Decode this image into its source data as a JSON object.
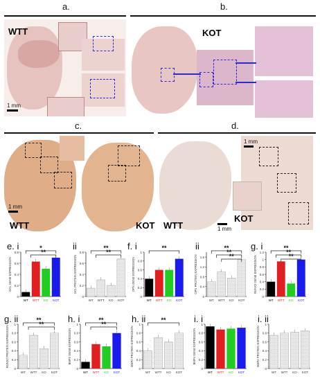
{
  "figure": {
    "panels": {
      "a": {
        "letter": "a.",
        "tissue_label": "WTT",
        "scale": "1 mm"
      },
      "b": {
        "letter": "b.",
        "tissue_label": "KOT"
      },
      "c": {
        "letter": "c.",
        "tissue_label_left": "WTT",
        "tissue_label_right": "KOT",
        "scale": "1 mm"
      },
      "d": {
        "letter": "d.",
        "tissue_label_left": "WTT",
        "tissue_label_right": "KOT",
        "scale_bottom": "1 mm",
        "scale_top": "1 mm"
      }
    },
    "chart_labels": {
      "e_i": "e. i",
      "e_ii": "ii",
      "f_i": "f. i",
      "f_ii": "ii",
      "g_i": "g. i",
      "g_ii": "g. ii",
      "h_i": "h. i",
      "h_ii": "h. ii",
      "i_i": "i. i",
      "i_ii": "i. ii"
    },
    "colors": {
      "WT": "#000000",
      "WTT": "#e02020",
      "KO": "#22cc22",
      "KOT": "#1a1aee",
      "hatch": "#c8c8c8",
      "tissue": "#e2b9b3",
      "stain": "#d9a079"
    }
  },
  "chart_data": [
    {
      "id": "e_i",
      "type": "bar",
      "ylabel": "OCL GENE EXPRESSION",
      "categories": [
        "WT",
        "WTT",
        "KO",
        "KOT"
      ],
      "values": [
        0.08,
        0.63,
        0.5,
        0.7
      ],
      "ylim": [
        0,
        0.8
      ],
      "colored": true,
      "sig": [
        "*",
        "**"
      ]
    },
    {
      "id": "e_ii",
      "type": "bar",
      "ylabel": "OCL PROTEIN EXPRESSION",
      "categories": [
        "WT",
        "WTT",
        "KO",
        "KOT"
      ],
      "values": [
        0.15,
        0.3,
        0.2,
        0.68
      ],
      "ylim": [
        0,
        0.8
      ],
      "colored": false,
      "sig": [
        "**",
        "**"
      ]
    },
    {
      "id": "f_i",
      "type": "bar",
      "ylabel": "OPN GENE EXPRESSION",
      "categories": [
        "WT",
        "WTT",
        "KO",
        "KOT"
      ],
      "values": [
        0.4,
        0.6,
        0.6,
        0.85
      ],
      "ylim": [
        0,
        1
      ],
      "colored": true,
      "sig": [
        "**"
      ]
    },
    {
      "id": "f_ii",
      "type": "bar",
      "ylabel": "OPN PROTEIN EXPRESSION",
      "categories": [
        "WT",
        "WTT",
        "KO",
        "KOT"
      ],
      "values": [
        0.6,
        1.0,
        0.75,
        1.5
      ],
      "ylim": [
        0,
        1.8
      ],
      "colored": false,
      "sig": [
        "**",
        "**",
        "**"
      ]
    },
    {
      "id": "g_i",
      "type": "bar",
      "ylabel": "RUNX2 GENE EXPRESSION",
      "categories": [
        "WT",
        "WTT",
        "KO",
        "KOT"
      ],
      "values": [
        0.4,
        0.95,
        0.35,
        1.0
      ],
      "ylim": [
        0,
        1.2
      ],
      "yticks": [
        0,
        0.2,
        0.4,
        0.6,
        0.8,
        1,
        1.2
      ],
      "colored": true,
      "sig": [
        "**",
        "**",
        "**"
      ]
    },
    {
      "id": "g_ii",
      "type": "bar",
      "ylabel": "RUNX2 PROTEIN EXPRESSION",
      "categories": [
        "WT",
        "WTT",
        "KO",
        "KOT"
      ],
      "values": [
        0.3,
        0.75,
        0.45,
        0.8
      ],
      "ylim": [
        0,
        1
      ],
      "colored": false,
      "sig": [
        "**",
        "**"
      ]
    },
    {
      "id": "h_i",
      "type": "bar",
      "ylabel": "BMP2 GENE EXPRESSION",
      "categories": [
        "WT",
        "WTT",
        "KO",
        "KOT"
      ],
      "values": [
        0.15,
        0.55,
        0.5,
        0.8
      ],
      "ylim": [
        0,
        1
      ],
      "colored": true,
      "sig": [
        "**",
        "**"
      ]
    },
    {
      "id": "h_ii",
      "type": "bar",
      "ylabel": "BMP2 PROTEIN EXPRESSION",
      "categories": [
        "WT",
        "WTT",
        "KO",
        "KOT"
      ],
      "values": [
        0.4,
        0.7,
        0.6,
        0.8
      ],
      "ylim": [
        0,
        1
      ],
      "colored": false,
      "sig": [
        "**"
      ]
    },
    {
      "id": "i_i",
      "type": "bar",
      "ylabel": "BMP4 GENE EXPRESSION",
      "categories": [
        "WT",
        "WTT",
        "KO",
        "KOT"
      ],
      "values": [
        0.95,
        0.88,
        0.9,
        0.92
      ],
      "ylim": [
        0,
        1
      ],
      "colored": true,
      "sig": []
    },
    {
      "id": "i_ii",
      "type": "bar",
      "ylabel": "BMP4 PROTEIN EXPRESSION",
      "categories": [
        "WT",
        "WTT",
        "KO",
        "KOT"
      ],
      "values": [
        0.75,
        0.8,
        0.82,
        0.85
      ],
      "ylim": [
        0,
        1
      ],
      "colored": false,
      "sig": []
    }
  ]
}
